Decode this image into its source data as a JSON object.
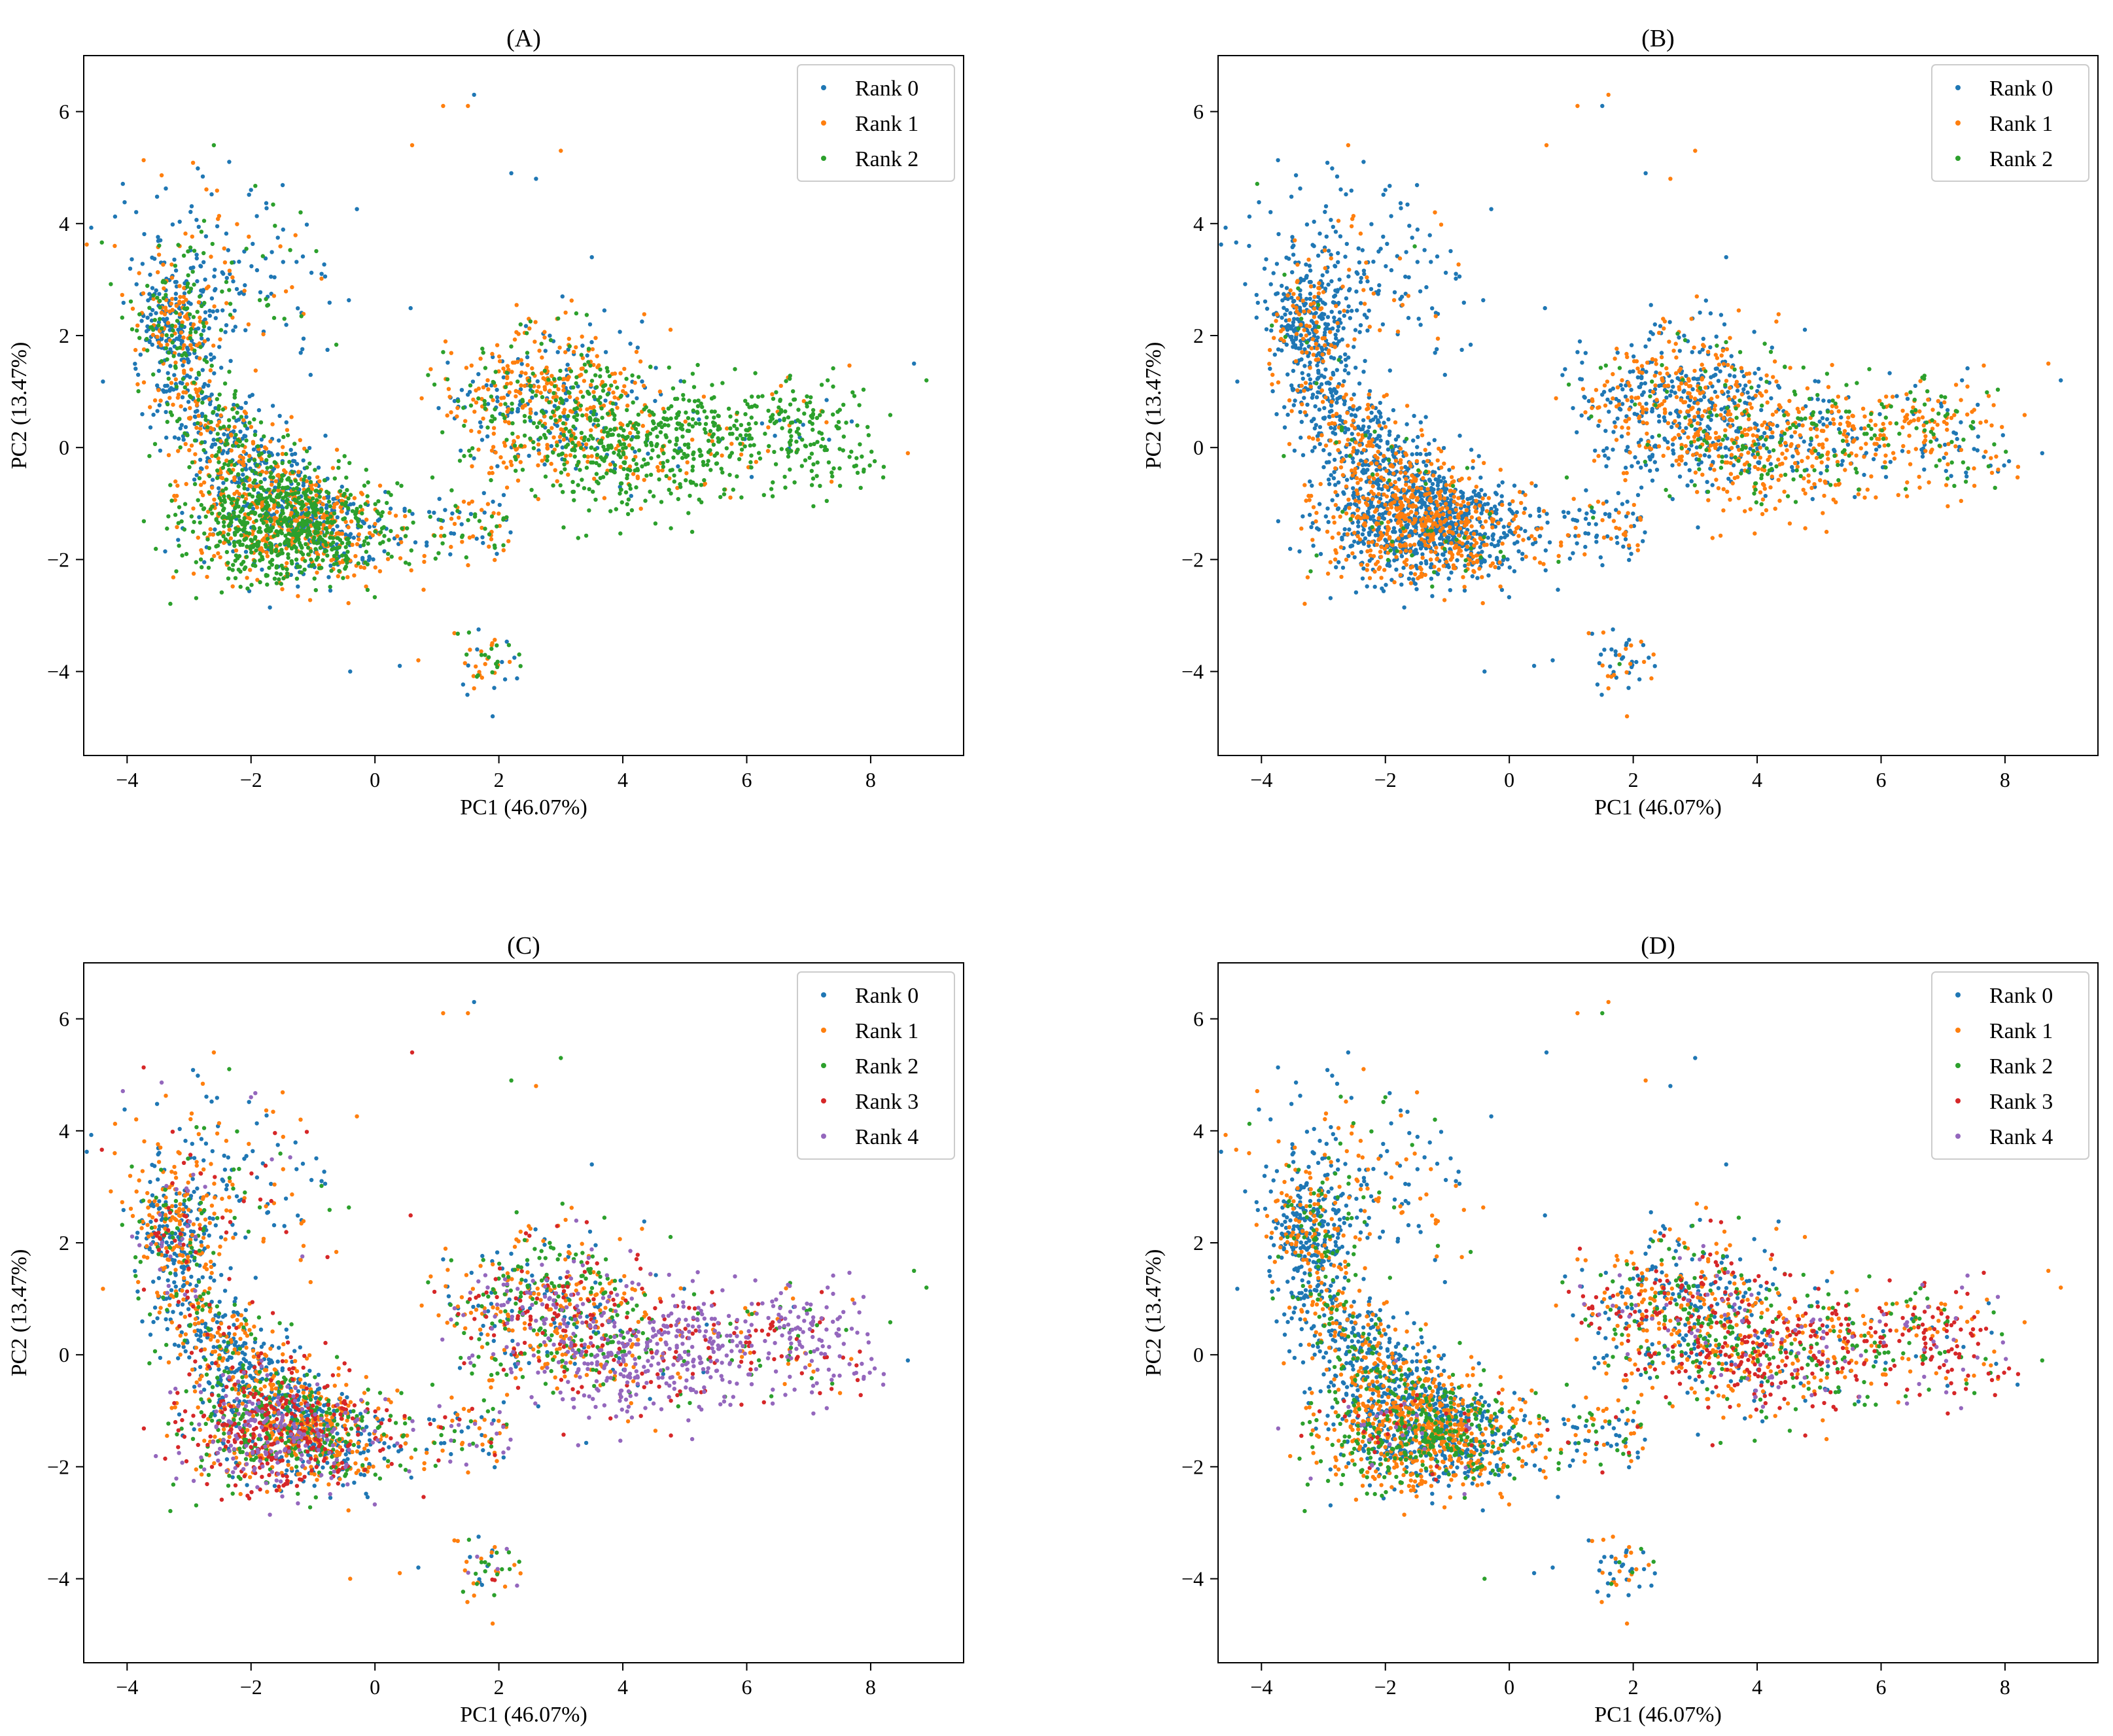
{
  "colors": {
    "rank0": "#1f77b4",
    "rank1": "#ff7f0e",
    "rank2": "#2ca02c",
    "rank3": "#d62728",
    "rank4": "#9467bd"
  },
  "chart_data": [
    {
      "type": "scatter",
      "title": "(A)",
      "xlabel": "PC1 (46.07%)",
      "ylabel": "PC2 (13.47%)",
      "xlim": [
        -4.7,
        9.5
      ],
      "ylim": [
        -5.5,
        7.0
      ],
      "xticks": [
        -4,
        -2,
        0,
        2,
        4,
        6,
        8
      ],
      "yticks": [
        -4,
        -2,
        0,
        2,
        4,
        6
      ],
      "xtick_labels": [
        "−4",
        "−2",
        "0",
        "2",
        "4",
        "6",
        "8"
      ],
      "ytick_labels": [
        "−4",
        "−2",
        "0",
        "2",
        "4",
        "6"
      ],
      "legend": [
        "Rank 0",
        "Rank 1",
        "Rank 2"
      ],
      "legend_loc": "upper right",
      "color_scheme": "A"
    },
    {
      "type": "scatter",
      "title": "(B)",
      "xlabel": "PC1 (46.07%)",
      "ylabel": "PC2 (13.47%)",
      "xlim": [
        -4.7,
        9.5
      ],
      "ylim": [
        -5.5,
        7.0
      ],
      "xticks": [
        -4,
        -2,
        0,
        2,
        4,
        6,
        8
      ],
      "yticks": [
        -4,
        -2,
        0,
        2,
        4,
        6
      ],
      "xtick_labels": [
        "−4",
        "−2",
        "0",
        "2",
        "4",
        "6",
        "8"
      ],
      "ytick_labels": [
        "−4",
        "−2",
        "0",
        "2",
        "4",
        "6"
      ],
      "legend": [
        "Rank 0",
        "Rank 1",
        "Rank 2"
      ],
      "legend_loc": "upper right",
      "color_scheme": "B"
    },
    {
      "type": "scatter",
      "title": "(C)",
      "xlabel": "PC1 (46.07%)",
      "ylabel": "PC2 (13.47%)",
      "xlim": [
        -4.7,
        9.5
      ],
      "ylim": [
        -5.5,
        7.0
      ],
      "xticks": [
        -4,
        -2,
        0,
        2,
        4,
        6,
        8
      ],
      "yticks": [
        -4,
        -2,
        0,
        2,
        4,
        6
      ],
      "xtick_labels": [
        "−4",
        "−2",
        "0",
        "2",
        "4",
        "6",
        "8"
      ],
      "ytick_labels": [
        "−4",
        "−2",
        "0",
        "2",
        "4",
        "6"
      ],
      "legend": [
        "Rank 0",
        "Rank 1",
        "Rank 2",
        "Rank 3",
        "Rank 4"
      ],
      "legend_loc": "upper right",
      "color_scheme": "C"
    },
    {
      "type": "scatter",
      "title": "(D)",
      "xlabel": "PC1 (46.07%)",
      "ylabel": "PC2 (13.47%)",
      "xlim": [
        -4.7,
        9.5
      ],
      "ylim": [
        -5.5,
        7.0
      ],
      "xticks": [
        -4,
        -2,
        0,
        2,
        4,
        6,
        8
      ],
      "yticks": [
        -4,
        -2,
        0,
        2,
        4,
        6
      ],
      "xtick_labels": [
        "−4",
        "−2",
        "0",
        "2",
        "4",
        "6",
        "8"
      ],
      "ytick_labels": [
        "−4",
        "−2",
        "0",
        "2",
        "4",
        "6"
      ],
      "legend": [
        "Rank 0",
        "Rank 1",
        "Rank 2",
        "Rank 3",
        "Rank 4"
      ],
      "legend_loc": "upper right",
      "color_scheme": "D"
    }
  ]
}
